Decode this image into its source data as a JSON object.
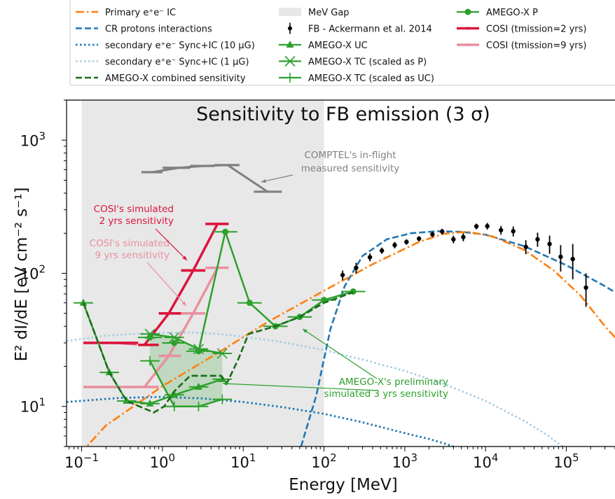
{
  "chart_data": {
    "type": "line",
    "title": "Sensitivity to FB emission (3 σ)",
    "xlabel": "Energy [MeV]",
    "ylabel": "E² dI/dE [eV cm⁻² s⁻¹]",
    "xscale": "log",
    "yscale": "log",
    "xlim": [
      0.065,
      400000
    ],
    "ylim": [
      5,
      2000
    ],
    "legend_position": "top, outside plot",
    "x_ticks": [
      {
        "value": 0.1,
        "base": "10",
        "exp": "−1"
      },
      {
        "value": 1,
        "base": "10",
        "exp": "0"
      },
      {
        "value": 10,
        "base": "10",
        "exp": "1"
      },
      {
        "value": 100,
        "base": "10",
        "exp": "2"
      },
      {
        "value": 1000,
        "base": "10",
        "exp": "3"
      },
      {
        "value": 10000,
        "base": "10",
        "exp": "4"
      },
      {
        "value": 100000,
        "base": "10",
        "exp": "5"
      }
    ],
    "y_ticks": [
      {
        "value": 10,
        "base": "10",
        "exp": "1"
      },
      {
        "value": 100,
        "base": "10",
        "exp": "2"
      },
      {
        "value": 1000,
        "base": "10",
        "exp": "3"
      }
    ],
    "regions": [
      {
        "name": "MeV Gap",
        "x": [
          0.1,
          100
        ],
        "color": "#e8e8e8"
      }
    ],
    "series": [
      {
        "name": "Primary e⁺e⁻ IC",
        "style": "dashdot",
        "color": "#ff7f0e",
        "x": [
          0.07,
          0.2,
          1,
          5,
          20,
          100,
          400,
          1500,
          3000,
          6000,
          12000,
          30000,
          70000,
          150000,
          300000,
          400000
        ],
        "y": [
          3.6,
          7.2,
          14.2,
          25.5,
          43,
          74,
          117,
          172,
          198,
          205,
          190,
          150,
          105,
          68,
          40,
          33
        ]
      },
      {
        "name": "CR protons interactions",
        "style": "dashed",
        "color": "#1f77b4",
        "x": [
          52,
          80,
          120,
          180,
          300,
          600,
          1200,
          2500,
          5000,
          10000,
          30000,
          100000,
          300000,
          400000
        ],
        "y": [
          5,
          12,
          38,
          80,
          135,
          180,
          200,
          207,
          205,
          195,
          160,
          115,
          80,
          72
        ]
      },
      {
        "name": "secondary e⁺e⁻ Sync+IC (10 μG)",
        "style": "dotted",
        "color": "#1f77b4",
        "x": [
          0.065,
          0.3,
          1,
          3,
          10,
          30,
          100,
          300,
          1000,
          2000,
          3000,
          4000
        ],
        "y": [
          10.8,
          11.6,
          11.8,
          11.5,
          10.8,
          9.9,
          8.8,
          7.6,
          6.3,
          5.7,
          5.3,
          5
        ]
      },
      {
        "name": "secondary e⁺e⁻ Sync+IC (1 μG)",
        "style": "dotted",
        "color": "#a6cee3",
        "x": [
          0.065,
          0.2,
          0.6,
          2,
          5,
          10,
          30,
          100,
          300,
          1000,
          3000,
          10000,
          30000,
          60000,
          90000
        ],
        "y": [
          31,
          34,
          35.5,
          36,
          35,
          33.5,
          30.5,
          26.5,
          22.5,
          18.5,
          14.8,
          11,
          7.8,
          6,
          5
        ]
      },
      {
        "name": "AMEGO-X combined sensitivity",
        "style": "dashed",
        "color": "#1a6b1a",
        "x": [
          0.105,
          0.22,
          0.36,
          0.78,
          1.05,
          1.4,
          2.2,
          5.3,
          6.3,
          8.8,
          11.6,
          25,
          50,
          100,
          230
        ],
        "y": [
          60,
          18,
          11,
          9,
          10,
          13,
          17,
          17,
          15,
          23,
          35,
          40,
          47,
          60,
          72
        ]
      },
      {
        "name": "FB - Ackermann et al. 2014",
        "type": "errorbar",
        "color": "#000000",
        "x": [
          170,
          250,
          370,
          520,
          750,
          1050,
          1500,
          2200,
          2900,
          4000,
          5300,
          7700,
          10500,
          15500,
          22000,
          31500,
          44000,
          62000,
          85000,
          120000,
          175000
        ],
        "y": [
          97,
          110,
          132,
          148,
          163,
          172,
          182,
          196,
          206,
          180,
          187,
          225,
          226,
          211,
          207,
          158,
          180,
          166,
          133,
          128,
          78
        ],
        "err": [
          8,
          10,
          9,
          8,
          9,
          8,
          8,
          9,
          10,
          12,
          13,
          11,
          13,
          16,
          18,
          19,
          22,
          26,
          30,
          38,
          22
        ]
      },
      {
        "name": "AMEGO-X UC",
        "marker": "triangle",
        "color": "#2ca02c",
        "x": [
          0.105,
          0.22,
          0.36,
          0.7,
          1.4,
          2.8,
          5.5
        ],
        "y": [
          60,
          18,
          11,
          10.5,
          12.2,
          14,
          16
        ]
      },
      {
        "name": "AMEGO-X TC (scaled as P)",
        "marker": "x",
        "color": "#2ca02c",
        "x": [
          0.7,
          1.4,
          2.8,
          5.5
        ],
        "y": [
          35,
          33,
          27,
          25
        ]
      },
      {
        "name": "AMEGO-X TC (scaled as UC)",
        "marker": "plus",
        "color": "#2ca02c",
        "x": [
          0.7,
          1.4,
          2.8,
          5.5
        ],
        "y": [
          22,
          10,
          10,
          11.3
        ]
      },
      {
        "name": "AMEGO-X P",
        "marker": "circle",
        "color": "#2ca02c",
        "x": [
          0.7,
          1.4,
          2.8,
          6,
          12,
          25,
          50,
          100,
          230
        ],
        "y": [
          33,
          30,
          26,
          205,
          60,
          40,
          47,
          63,
          73
        ]
      },
      {
        "name": "COSI (t_mission=2 yrs)",
        "color": "#dc143c",
        "x": [
          0.17,
          0.6,
          1.2,
          2.4,
          4.8
        ],
        "y": [
          30,
          29,
          50,
          105,
          235
        ]
      },
      {
        "name": "COSI (t_mission=9 yrs)",
        "color": "#e8909f",
        "x": [
          0.17,
          0.6,
          1.2,
          2.4,
          4.8
        ],
        "y": [
          14,
          14,
          24,
          50,
          110
        ]
      },
      {
        "name": "COMPTEL in-flight",
        "color": "#808080",
        "x": [
          0.75,
          1.6,
          3.2,
          6.4,
          20
        ],
        "y": [
          575,
          620,
          640,
          650,
          410
        ]
      }
    ],
    "annotations": [
      {
        "text": "COMPTEL's in-flight",
        "color": "#808080"
      },
      {
        "text": "measured sensitivity",
        "color": "#808080"
      },
      {
        "text": "COSI's simulated",
        "color": "#dc143c"
      },
      {
        "text": "2 yrs sensitivity",
        "color": "#dc143c"
      },
      {
        "text": "COSI's simulated",
        "color": "#e8909f"
      },
      {
        "text": "9 yrs sensitivity",
        "color": "#e8909f"
      },
      {
        "text": "AMEGO-X's preliminary",
        "color": "#2ca02c"
      },
      {
        "text": "simulated 3 yrs sensitivity",
        "color": "#2ca02c"
      }
    ],
    "legend": [
      {
        "label": "Primary e⁺e⁻ IC",
        "kind": "dashdot",
        "color": "#ff7f0e"
      },
      {
        "label": "CR protons interactions",
        "kind": "dashed",
        "color": "#1f77b4"
      },
      {
        "label": "secondary e⁺e⁻ Sync+IC (10 μG)",
        "kind": "dotted",
        "color": "#1f77b4"
      },
      {
        "label": "secondary e⁺e⁻ Sync+IC (1 μG)",
        "kind": "dotted",
        "color": "#a6cee3"
      },
      {
        "label": "AMEGO-X combined sensitivity",
        "kind": "dashed",
        "color": "#1a6b1a"
      },
      {
        "label": "MeV Gap",
        "kind": "patch",
        "color": "#e8e8e8"
      },
      {
        "label": "FB - Ackermann et al. 2014",
        "kind": "errorbar",
        "color": "#000000"
      },
      {
        "label": "AMEGO-X UC",
        "kind": "triangle",
        "color": "#2ca02c"
      },
      {
        "label": "AMEGO-X TC (scaled as P)",
        "kind": "x",
        "color": "#2ca02c"
      },
      {
        "label": "AMEGO-X TC (scaled as UC)",
        "kind": "plus",
        "color": "#2ca02c"
      },
      {
        "label": "AMEGO-X P",
        "kind": "circle",
        "color": "#2ca02c"
      },
      {
        "label": "COSI (tmission=2 yrs)",
        "kind": "thick",
        "color": "#dc143c"
      },
      {
        "label": "COSI (tmission=9 yrs)",
        "kind": "thick",
        "color": "#e8909f"
      }
    ]
  }
}
